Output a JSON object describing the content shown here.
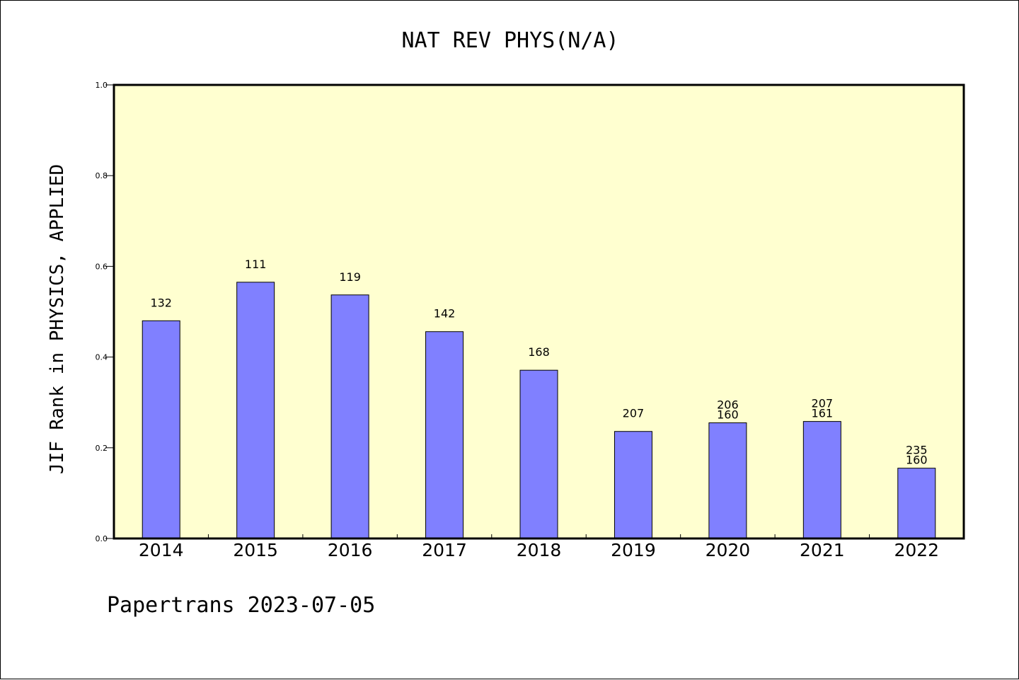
{
  "chart_data": {
    "type": "bar",
    "title": "NAT REV PHYS(N/A)",
    "xlabel": "",
    "ylabel": "JIF Rank in PHYSICS, APPLIED",
    "ylim": [
      0,
      1.0
    ],
    "yticks": [
      "0.0",
      "0.2",
      "0.4",
      "0.6",
      "0.8",
      "1.0"
    ],
    "categories": [
      "2014",
      "2015",
      "2016",
      "2017",
      "2018",
      "2019",
      "2020",
      "2021",
      "2022"
    ],
    "values": [
      0.48,
      0.565,
      0.537,
      0.456,
      0.371,
      0.236,
      0.255,
      0.258,
      0.155
    ],
    "labels": [
      [
        "132"
      ],
      [
        "111"
      ],
      [
        "119"
      ],
      [
        "142"
      ],
      [
        "168"
      ],
      [
        "207"
      ],
      [
        "206",
        "160"
      ],
      [
        "207",
        "161"
      ],
      [
        "235",
        "160"
      ]
    ],
    "bar_color": "#8080ff",
    "plot_background": "#ffffd0",
    "grid": false,
    "legend": "none"
  },
  "footer": "Papertrans 2023-07-05"
}
